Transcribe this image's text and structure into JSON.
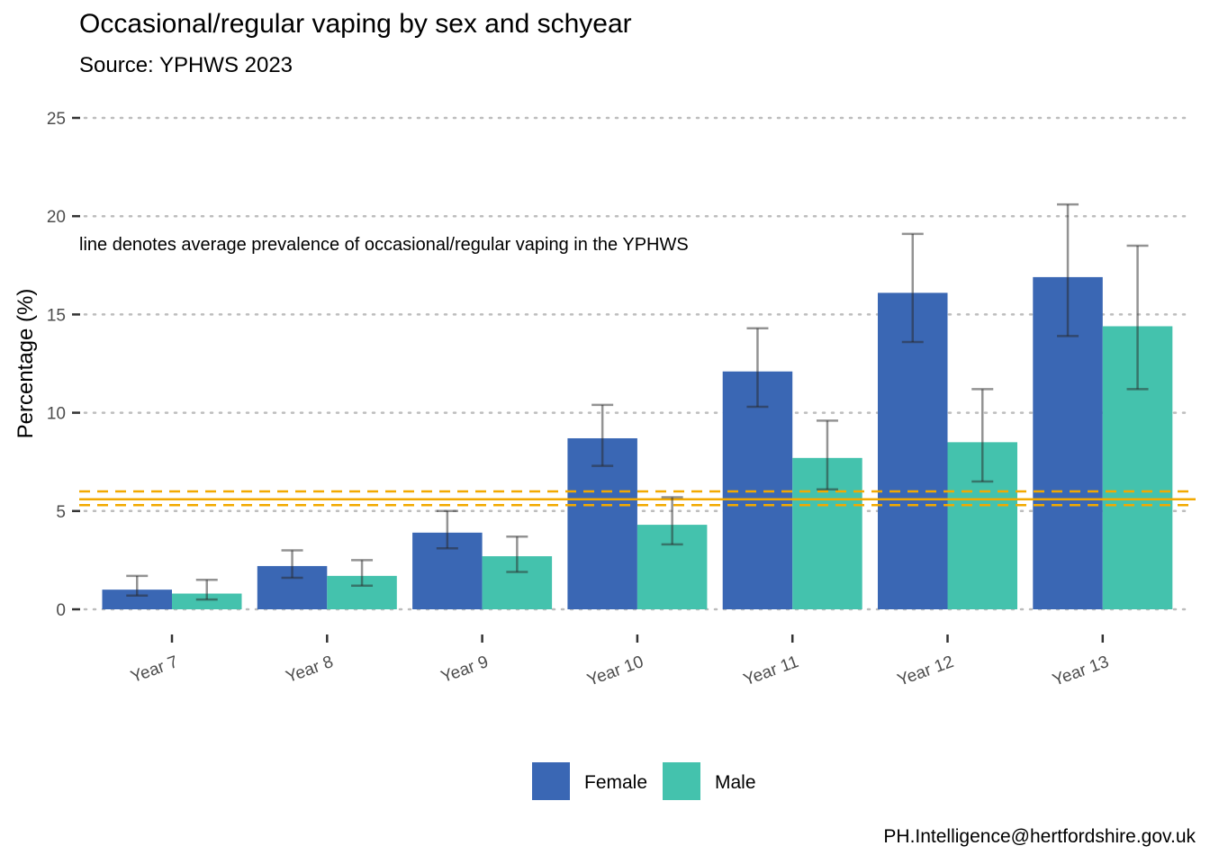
{
  "title": "Occasional/regular vaping by sex and schyear",
  "subtitle": "Source: YPHWS 2023",
  "caption": "PH.Intelligence@hertfordshire.gov.uk",
  "chart_data": {
    "type": "bar",
    "categories": [
      "Year 7",
      "Year 8",
      "Year 9",
      "Year 10",
      "Year 11",
      "Year 12",
      "Year 13"
    ],
    "series": [
      {
        "name": "Female",
        "color": "#3a67b4",
        "values": [
          1.0,
          2.2,
          3.9,
          8.7,
          12.1,
          16.1,
          16.9
        ],
        "ci_lower": [
          0.7,
          1.6,
          3.1,
          7.3,
          10.3,
          13.6,
          13.9
        ],
        "ci_upper": [
          1.7,
          3.0,
          5.0,
          10.4,
          14.3,
          19.1,
          20.6
        ]
      },
      {
        "name": "Male",
        "color": "#44c2ad",
        "values": [
          0.8,
          1.7,
          2.7,
          4.3,
          7.7,
          8.5,
          14.4
        ],
        "ci_lower": [
          0.5,
          1.2,
          1.9,
          3.3,
          6.1,
          6.5,
          11.2
        ],
        "ci_upper": [
          1.5,
          2.5,
          3.7,
          5.7,
          9.6,
          11.2,
          18.5
        ]
      }
    ],
    "reference_line": {
      "value": 5.6,
      "ci_lower": 5.3,
      "ci_upper": 6.0,
      "color": "#f2a900",
      "label": "line denotes average prevalence of occasional/regular vaping in the YPHWS"
    },
    "ylabel": "Percentage (%)",
    "xlabel": "",
    "ylim": [
      0,
      25
    ],
    "yticks": [
      0,
      5,
      10,
      15,
      20,
      25
    ],
    "grid": "horizontal dotted",
    "legend_position": "bottom"
  }
}
